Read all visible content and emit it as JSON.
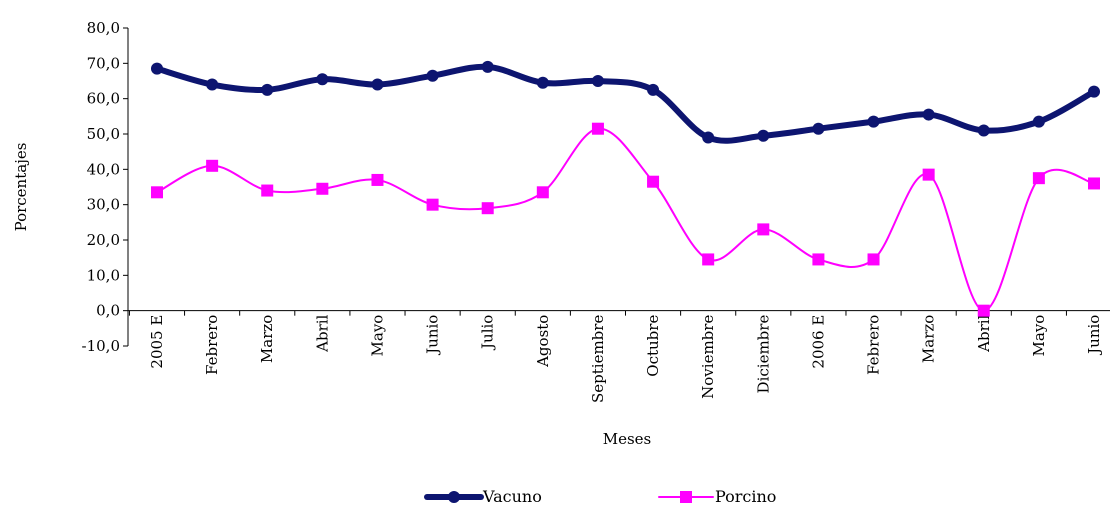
{
  "chart_data": {
    "type": "line",
    "title": "",
    "xlabel": "Meses",
    "ylabel": "Porcentajes",
    "ylim": [
      -10,
      80
    ],
    "yticks": [
      "-10,0",
      "0,0",
      "10,0",
      "20,0",
      "30,0",
      "40,0",
      "50,0",
      "60,0",
      "70,0",
      "80,0"
    ],
    "categories": [
      "2005 E",
      "Febrero",
      "Marzo",
      "Abril",
      "Mayo",
      "Junio",
      "Julio",
      "Agosto",
      "Septiembre",
      "Octubre",
      "Noviembre",
      "Diciembre",
      "2006 E",
      "Febrero",
      "Marzo",
      "Abril",
      "Mayo",
      "Junio"
    ],
    "grid": false,
    "legend_position": "bottom",
    "series": [
      {
        "name": "Vacuno",
        "color": "#0d1570",
        "marker": "circle",
        "values": [
          68.5,
          64.0,
          62.5,
          65.5,
          64.0,
          66.5,
          69.0,
          64.5,
          65.0,
          62.5,
          49.0,
          49.5,
          51.5,
          53.5,
          55.5,
          51.0,
          53.5,
          62.0
        ]
      },
      {
        "name": "Porcino",
        "color": "#ff00ff",
        "marker": "square",
        "values": [
          33.5,
          41.0,
          34.0,
          34.5,
          37.0,
          30.0,
          29.0,
          33.5,
          51.5,
          36.5,
          14.5,
          23.0,
          14.5,
          14.5,
          38.5,
          0.0,
          37.5,
          36.0
        ]
      }
    ]
  }
}
